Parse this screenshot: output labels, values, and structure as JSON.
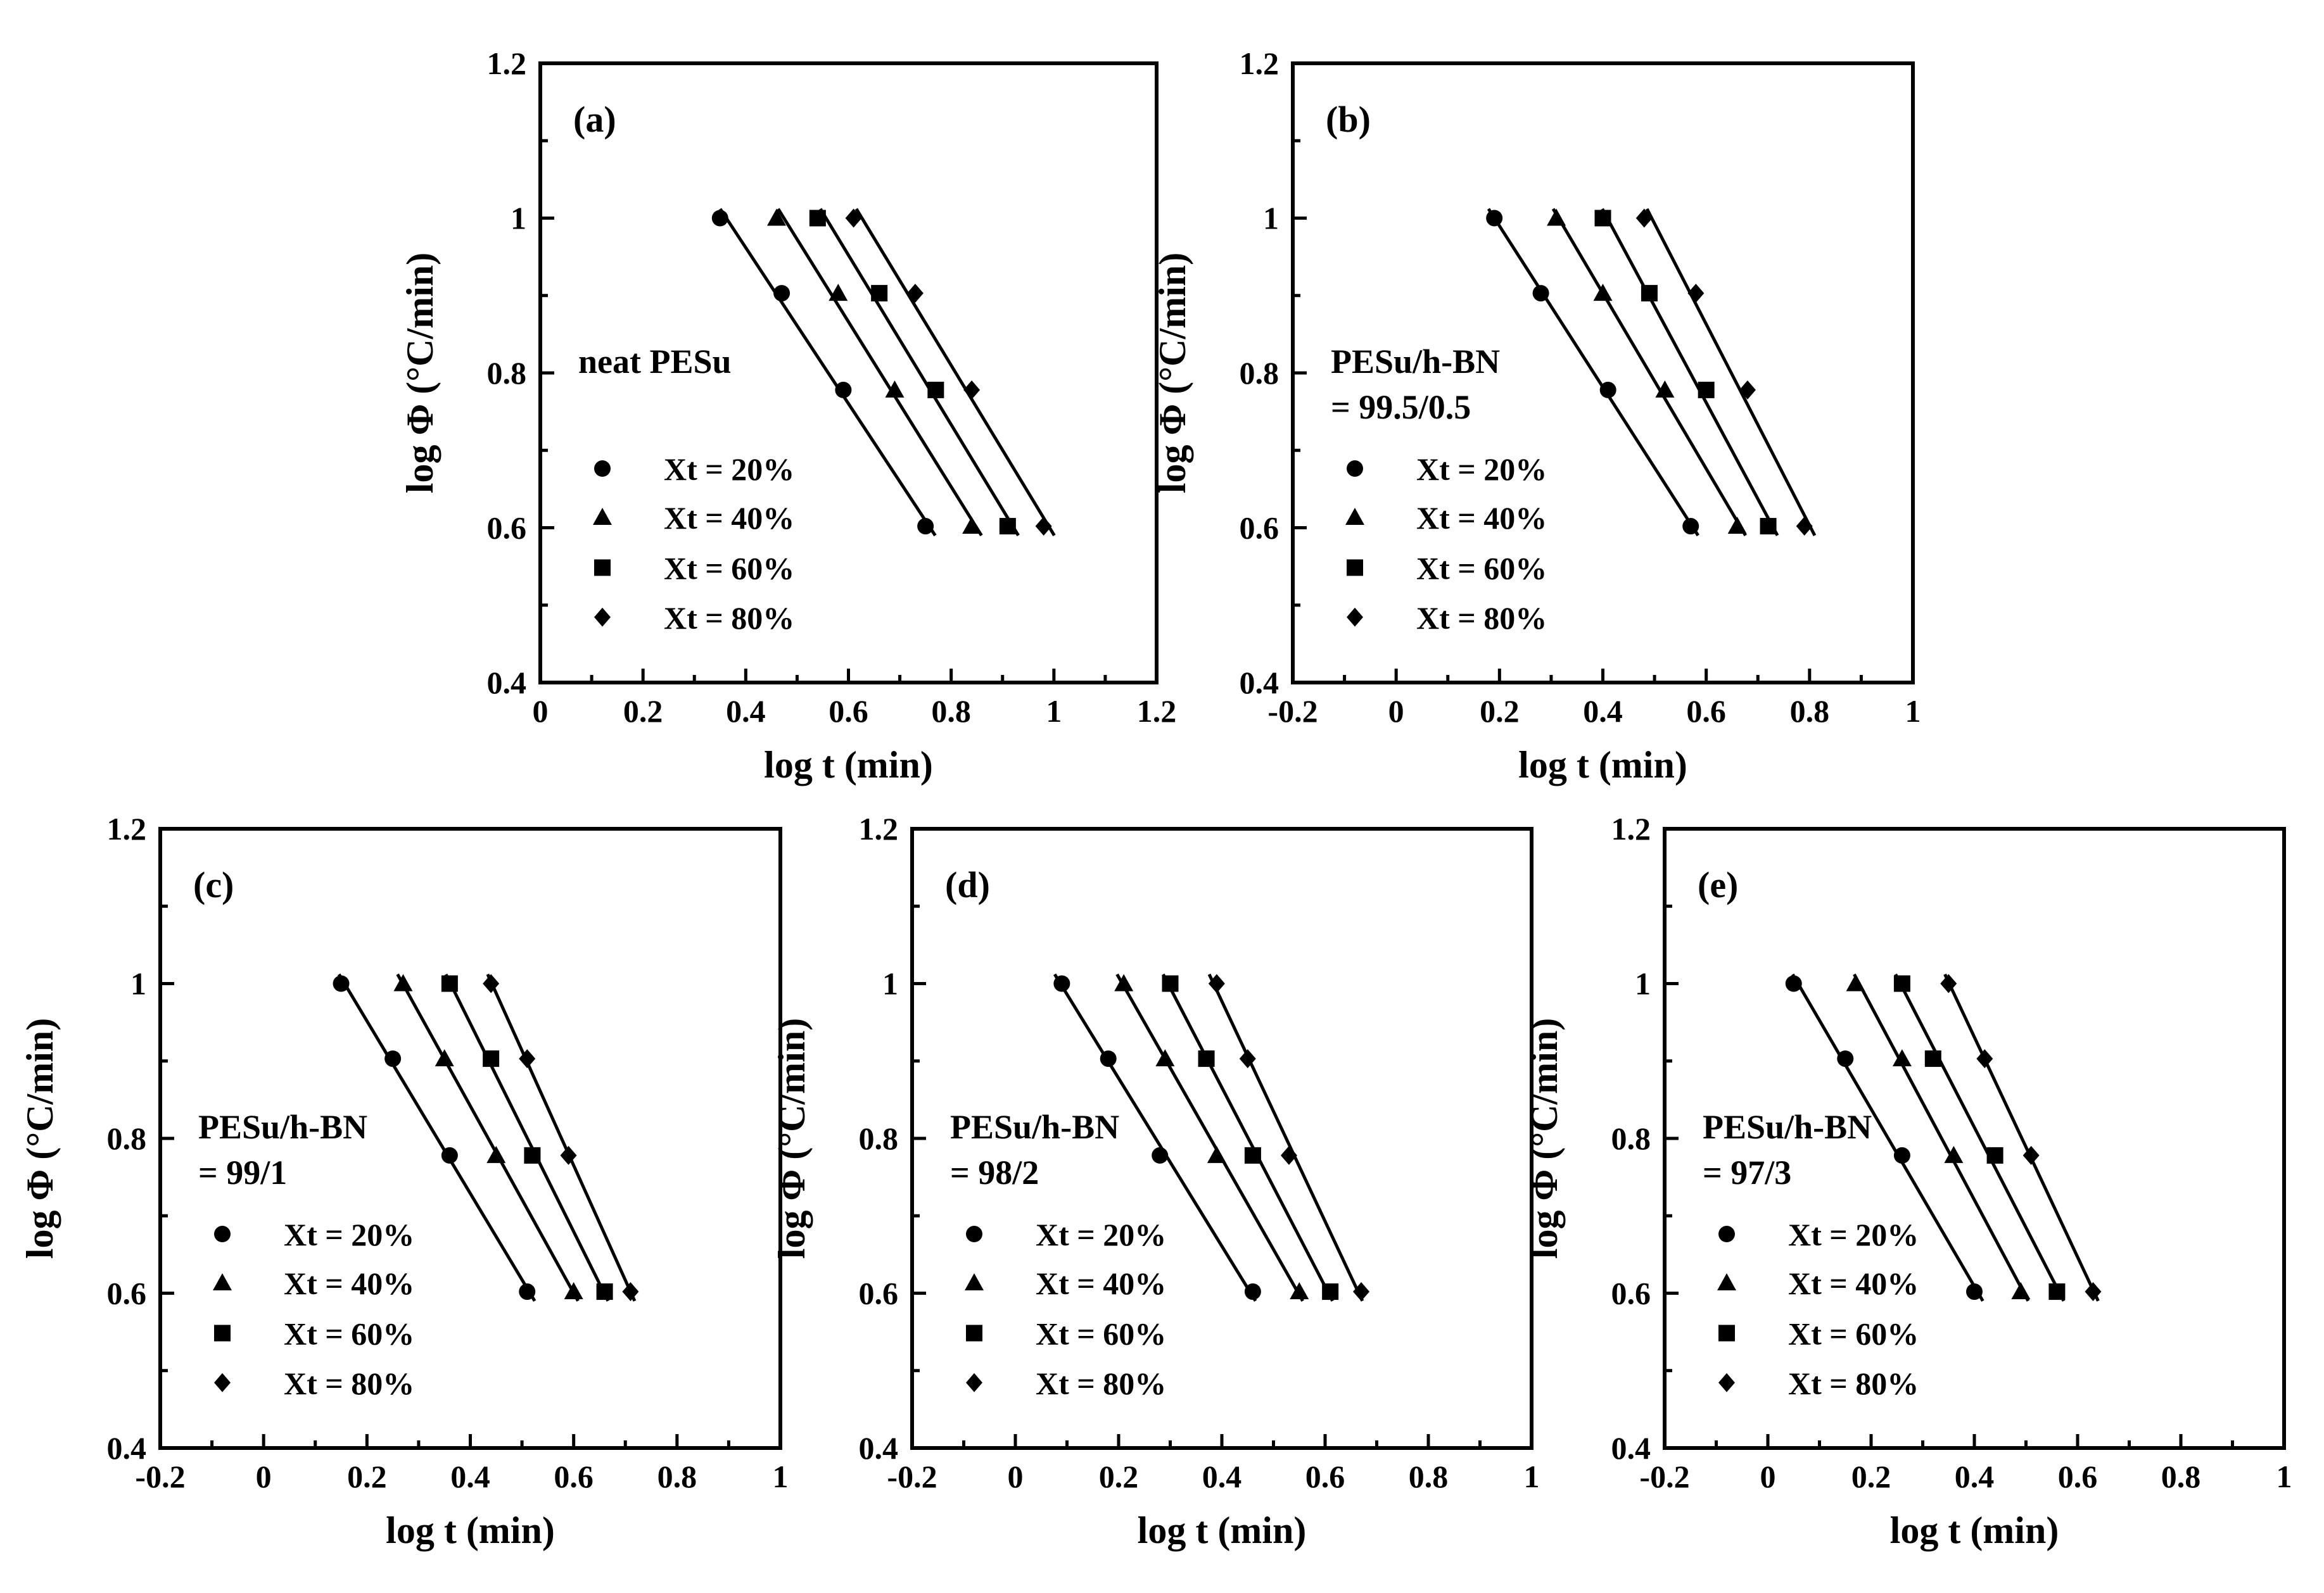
{
  "chart_data": [
    {
      "type": "scatter",
      "panel_label": "(a)",
      "xlabel": "log t (min)",
      "ylabel": "log Φ (°C/min)",
      "xlim": [
        0,
        1.2
      ],
      "ylim": [
        0.4,
        1.2
      ],
      "xticks": [
        "0",
        "0.2",
        "0.4",
        "0.6",
        "0.8",
        "1",
        "1.2"
      ],
      "xtick_values": [
        0,
        0.2,
        0.4,
        0.6,
        0.8,
        1.0,
        1.2
      ],
      "yticks": [
        "0.4",
        "0.6",
        "0.8",
        "1",
        "1.2"
      ],
      "ytick_values": [
        0.4,
        0.6,
        0.8,
        1.0,
        1.2
      ],
      "legend_title": [
        "neat PESu"
      ],
      "y": [
        1.0,
        0.903,
        0.778,
        0.602
      ],
      "series": [
        {
          "name": "Xt = 20%",
          "marker": "circle",
          "x": [
            0.35,
            0.47,
            0.59,
            0.75
          ]
        },
        {
          "name": "Xt = 40%",
          "marker": "triangle",
          "x": [
            0.46,
            0.58,
            0.69,
            0.84
          ]
        },
        {
          "name": "Xt = 60%",
          "marker": "square",
          "x": [
            0.54,
            0.66,
            0.77,
            0.91
          ]
        },
        {
          "name": "Xt = 80%",
          "marker": "diamond",
          "x": [
            0.61,
            0.73,
            0.84,
            0.98
          ]
        }
      ]
    },
    {
      "type": "scatter",
      "panel_label": "(b)",
      "xlabel": "log t (min)",
      "ylabel": "log Φ (°C/min)",
      "xlim": [
        -0.2,
        1.0
      ],
      "ylim": [
        0.4,
        1.2
      ],
      "xticks": [
        "-0.2",
        "0",
        "0.2",
        "0.4",
        "0.6",
        "0.8",
        "1"
      ],
      "xtick_values": [
        -0.2,
        0,
        0.2,
        0.4,
        0.6,
        0.8,
        1.0
      ],
      "yticks": [
        "0.4",
        "0.6",
        "0.8",
        "1",
        "1.2"
      ],
      "ytick_values": [
        0.4,
        0.6,
        0.8,
        1.0,
        1.2
      ],
      "legend_title": [
        "PESu/h-BN",
        "= 99.5/0.5"
      ],
      "y": [
        1.0,
        0.903,
        0.778,
        0.602
      ],
      "series": [
        {
          "name": "Xt = 20%",
          "marker": "circle",
          "x": [
            0.19,
            0.28,
            0.41,
            0.57
          ]
        },
        {
          "name": "Xt = 40%",
          "marker": "triangle",
          "x": [
            0.31,
            0.4,
            0.52,
            0.66
          ]
        },
        {
          "name": "Xt = 60%",
          "marker": "square",
          "x": [
            0.4,
            0.49,
            0.6,
            0.72
          ]
        },
        {
          "name": "Xt = 80%",
          "marker": "diamond",
          "x": [
            0.48,
            0.58,
            0.68,
            0.79
          ]
        }
      ]
    },
    {
      "type": "scatter",
      "panel_label": "(c)",
      "xlabel": "log t (min)",
      "ylabel": "log Φ (°C/min)",
      "xlim": [
        -0.2,
        1.0
      ],
      "ylim": [
        0.4,
        1.2
      ],
      "xticks": [
        "-0.2",
        "0",
        "0.2",
        "0.4",
        "0.6",
        "0.8",
        "1"
      ],
      "xtick_values": [
        -0.2,
        0,
        0.2,
        0.4,
        0.6,
        0.8,
        1.0
      ],
      "yticks": [
        "0.4",
        "0.6",
        "0.8",
        "1",
        "1.2"
      ],
      "ytick_values": [
        0.4,
        0.6,
        0.8,
        1.0,
        1.2
      ],
      "legend_title": [
        "PESu/h-BN",
        "= 99/1"
      ],
      "y": [
        1.0,
        0.903,
        0.778,
        0.602
      ],
      "series": [
        {
          "name": "Xt = 20%",
          "marker": "circle",
          "x": [
            0.15,
            0.25,
            0.36,
            0.51
          ]
        },
        {
          "name": "Xt = 40%",
          "marker": "triangle",
          "x": [
            0.27,
            0.35,
            0.45,
            0.6
          ]
        },
        {
          "name": "Xt = 60%",
          "marker": "square",
          "x": [
            0.36,
            0.44,
            0.52,
            0.66
          ]
        },
        {
          "name": "Xt = 80%",
          "marker": "diamond",
          "x": [
            0.44,
            0.51,
            0.59,
            0.71
          ]
        }
      ]
    },
    {
      "type": "scatter",
      "panel_label": "(d)",
      "xlabel": "log t (min)",
      "ylabel": "log Φ (°C/min)",
      "xlim": [
        -0.2,
        1.0
      ],
      "ylim": [
        0.4,
        1.2
      ],
      "xticks": [
        "-0.2",
        "0",
        "0.2",
        "0.4",
        "0.6",
        "0.8",
        "1"
      ],
      "xtick_values": [
        -0.2,
        0,
        0.2,
        0.4,
        0.6,
        0.8,
        1.0
      ],
      "yticks": [
        "0.4",
        "0.6",
        "0.8",
        "1",
        "1.2"
      ],
      "ytick_values": [
        0.4,
        0.6,
        0.8,
        1.0,
        1.2
      ],
      "legend_title": [
        "PESu/h-BN",
        "= 98/2"
      ],
      "y": [
        1.0,
        0.903,
        0.778,
        0.602
      ],
      "series": [
        {
          "name": "Xt = 20%",
          "marker": "circle",
          "x": [
            0.09,
            0.18,
            0.28,
            0.46
          ]
        },
        {
          "name": "Xt = 40%",
          "marker": "triangle",
          "x": [
            0.21,
            0.29,
            0.39,
            0.55
          ]
        },
        {
          "name": "Xt = 60%",
          "marker": "square",
          "x": [
            0.3,
            0.37,
            0.46,
            0.61
          ]
        },
        {
          "name": "Xt = 80%",
          "marker": "diamond",
          "x": [
            0.39,
            0.45,
            0.53,
            0.67
          ]
        }
      ]
    },
    {
      "type": "scatter",
      "panel_label": "(e)",
      "xlabel": "log t (min)",
      "ylabel": "log Φ (°C/min)",
      "xlim": [
        -0.2,
        1.0
      ],
      "ylim": [
        0.4,
        1.2
      ],
      "xticks": [
        "-0.2",
        "0",
        "0.2",
        "0.4",
        "0.6",
        "0.8",
        "1"
      ],
      "xtick_values": [
        -0.2,
        0,
        0.2,
        0.4,
        0.6,
        0.8,
        1.0
      ],
      "yticks": [
        "0.4",
        "0.6",
        "0.8",
        "1",
        "1.2"
      ],
      "ytick_values": [
        0.4,
        0.6,
        0.8,
        1.0,
        1.2
      ],
      "legend_title": [
        "PESu/h-BN",
        "= 97/3"
      ],
      "y": [
        1.0,
        0.903,
        0.778,
        0.602
      ],
      "series": [
        {
          "name": "Xt = 20%",
          "marker": "circle",
          "x": [
            0.05,
            0.15,
            0.26,
            0.4
          ]
        },
        {
          "name": "Xt = 40%",
          "marker": "triangle",
          "x": [
            0.17,
            0.26,
            0.36,
            0.49
          ]
        },
        {
          "name": "Xt = 60%",
          "marker": "square",
          "x": [
            0.26,
            0.32,
            0.44,
            0.56
          ]
        },
        {
          "name": "Xt = 80%",
          "marker": "diamond",
          "x": [
            0.35,
            0.42,
            0.51,
            0.63
          ]
        }
      ]
    }
  ]
}
